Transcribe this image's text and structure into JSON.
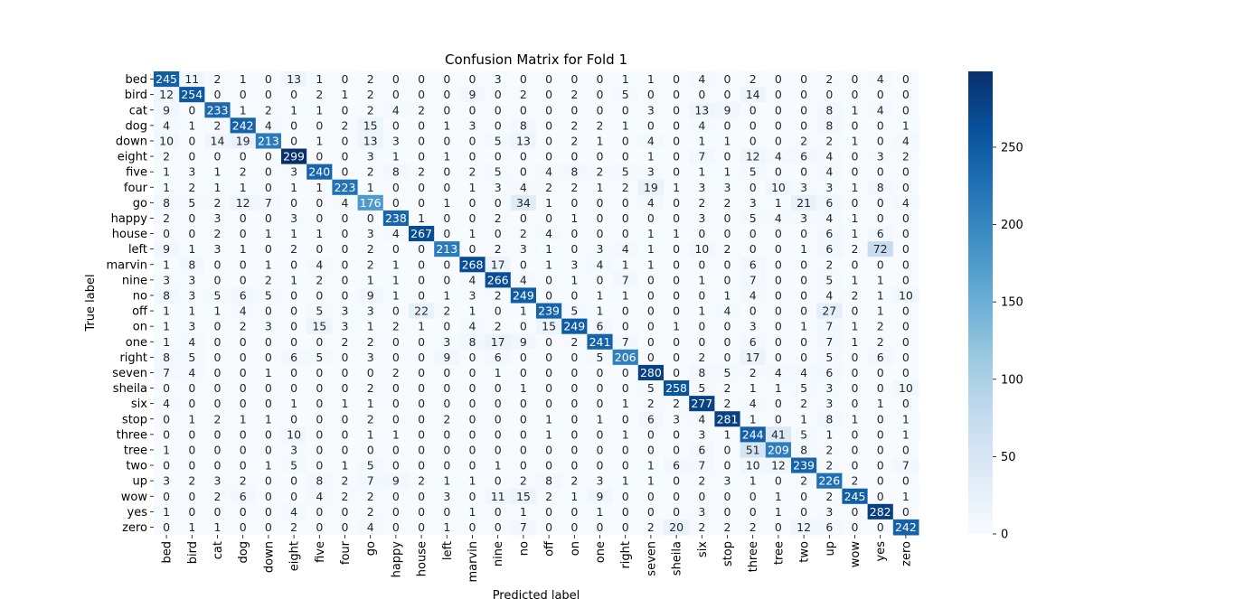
{
  "chart_data": {
    "type": "heatmap",
    "title": "Confusion Matrix for Fold 1",
    "xlabel": "Predicted label",
    "ylabel": "True label",
    "labels": [
      "bed",
      "bird",
      "cat",
      "dog",
      "down",
      "eight",
      "five",
      "four",
      "go",
      "happy",
      "house",
      "left",
      "marvin",
      "nine",
      "no",
      "off",
      "on",
      "one",
      "right",
      "seven",
      "sheila",
      "six",
      "stop",
      "three",
      "tree",
      "two",
      "up",
      "wow",
      "yes",
      "zero"
    ],
    "matrix": [
      [
        245,
        11,
        2,
        1,
        0,
        13,
        1,
        0,
        2,
        0,
        0,
        0,
        0,
        3,
        0,
        0,
        0,
        0,
        1,
        1,
        0,
        4,
        0,
        2,
        0,
        0,
        2,
        0,
        4,
        0
      ],
      [
        12,
        254,
        0,
        0,
        0,
        0,
        2,
        1,
        2,
        0,
        0,
        0,
        9,
        0,
        2,
        0,
        2,
        0,
        5,
        0,
        0,
        0,
        0,
        14,
        0,
        0,
        0,
        0,
        0,
        0
      ],
      [
        9,
        0,
        233,
        1,
        2,
        1,
        1,
        0,
        2,
        4,
        2,
        0,
        0,
        0,
        0,
        0,
        0,
        0,
        0,
        3,
        0,
        13,
        9,
        0,
        0,
        0,
        8,
        1,
        4,
        0
      ],
      [
        4,
        1,
        2,
        242,
        4,
        0,
        0,
        2,
        15,
        0,
        0,
        1,
        3,
        0,
        8,
        0,
        2,
        2,
        1,
        0,
        0,
        4,
        0,
        0,
        0,
        0,
        8,
        0,
        0,
        1
      ],
      [
        10,
        0,
        14,
        19,
        213,
        0,
        1,
        0,
        13,
        3,
        0,
        0,
        0,
        5,
        13,
        0,
        2,
        1,
        0,
        4,
        0,
        1,
        1,
        0,
        0,
        2,
        2,
        1,
        0,
        4
      ],
      [
        2,
        0,
        0,
        0,
        0,
        299,
        0,
        0,
        3,
        1,
        0,
        1,
        0,
        0,
        0,
        0,
        0,
        0,
        0,
        1,
        0,
        7,
        0,
        12,
        4,
        6,
        4,
        0,
        3,
        2
      ],
      [
        1,
        3,
        1,
        2,
        0,
        3,
        240,
        0,
        2,
        8,
        2,
        0,
        2,
        5,
        0,
        4,
        8,
        2,
        5,
        3,
        0,
        1,
        1,
        5,
        0,
        0,
        4,
        0,
        0,
        0
      ],
      [
        1,
        2,
        1,
        1,
        0,
        1,
        1,
        223,
        1,
        0,
        0,
        0,
        1,
        3,
        4,
        2,
        2,
        1,
        2,
        19,
        1,
        3,
        3,
        0,
        10,
        3,
        3,
        1,
        8,
        0
      ],
      [
        8,
        5,
        2,
        12,
        7,
        0,
        0,
        4,
        176,
        0,
        0,
        1,
        0,
        0,
        34,
        1,
        0,
        0,
        0,
        4,
        0,
        2,
        2,
        3,
        1,
        21,
        6,
        0,
        0,
        4
      ],
      [
        2,
        0,
        3,
        0,
        0,
        3,
        0,
        0,
        0,
        238,
        1,
        0,
        0,
        2,
        0,
        0,
        1,
        0,
        0,
        0,
        0,
        3,
        0,
        5,
        4,
        3,
        4,
        1,
        0,
        0
      ],
      [
        0,
        0,
        2,
        0,
        1,
        1,
        1,
        0,
        3,
        4,
        267,
        0,
        1,
        0,
        2,
        4,
        0,
        0,
        0,
        1,
        1,
        0,
        0,
        0,
        0,
        0,
        6,
        1,
        6,
        0
      ],
      [
        9,
        1,
        3,
        1,
        0,
        2,
        0,
        0,
        2,
        0,
        0,
        213,
        0,
        2,
        3,
        1,
        0,
        3,
        4,
        1,
        0,
        10,
        2,
        0,
        0,
        1,
        6,
        2,
        72,
        0
      ],
      [
        1,
        8,
        0,
        0,
        1,
        0,
        4,
        0,
        2,
        1,
        0,
        0,
        268,
        17,
        0,
        1,
        3,
        4,
        1,
        1,
        0,
        0,
        0,
        6,
        0,
        0,
        2,
        0,
        0,
        0
      ],
      [
        3,
        3,
        0,
        0,
        2,
        1,
        2,
        0,
        1,
        1,
        0,
        0,
        4,
        266,
        4,
        0,
        1,
        0,
        7,
        0,
        0,
        1,
        0,
        7,
        0,
        0,
        5,
        1,
        1,
        0
      ],
      [
        8,
        3,
        5,
        6,
        5,
        0,
        0,
        0,
        9,
        1,
        0,
        1,
        3,
        2,
        249,
        0,
        0,
        1,
        1,
        0,
        0,
        0,
        1,
        4,
        0,
        0,
        4,
        2,
        1,
        10
      ],
      [
        1,
        1,
        1,
        4,
        0,
        0,
        5,
        3,
        3,
        0,
        22,
        2,
        1,
        0,
        1,
        239,
        5,
        1,
        0,
        0,
        0,
        1,
        4,
        0,
        0,
        0,
        27,
        0,
        1,
        0
      ],
      [
        1,
        3,
        0,
        2,
        3,
        0,
        15,
        3,
        1,
        2,
        1,
        0,
        4,
        2,
        0,
        15,
        249,
        6,
        0,
        0,
        1,
        0,
        0,
        3,
        0,
        1,
        7,
        1,
        2,
        0
      ],
      [
        1,
        4,
        0,
        0,
        0,
        0,
        0,
        2,
        2,
        0,
        0,
        3,
        8,
        17,
        9,
        0,
        2,
        241,
        7,
        0,
        0,
        0,
        0,
        6,
        0,
        0,
        7,
        1,
        2,
        0
      ],
      [
        8,
        5,
        0,
        0,
        0,
        6,
        5,
        0,
        3,
        0,
        0,
        9,
        0,
        6,
        0,
        0,
        0,
        5,
        206,
        0,
        0,
        2,
        0,
        17,
        0,
        0,
        5,
        0,
        6,
        0
      ],
      [
        7,
        4,
        0,
        0,
        1,
        0,
        0,
        0,
        0,
        2,
        0,
        0,
        0,
        1,
        0,
        0,
        0,
        0,
        0,
        280,
        0,
        8,
        5,
        2,
        4,
        4,
        6,
        0,
        0,
        0
      ],
      [
        0,
        0,
        0,
        0,
        0,
        0,
        0,
        0,
        2,
        0,
        0,
        0,
        0,
        0,
        1,
        0,
        0,
        0,
        0,
        5,
        258,
        5,
        2,
        1,
        1,
        5,
        3,
        0,
        0,
        10
      ],
      [
        4,
        0,
        0,
        0,
        0,
        1,
        0,
        1,
        1,
        0,
        0,
        0,
        0,
        0,
        0,
        0,
        0,
        0,
        1,
        2,
        2,
        277,
        2,
        4,
        0,
        2,
        3,
        0,
        1,
        0
      ],
      [
        0,
        1,
        2,
        1,
        1,
        0,
        0,
        0,
        2,
        0,
        0,
        2,
        0,
        0,
        0,
        1,
        0,
        1,
        0,
        6,
        3,
        4,
        281,
        1,
        0,
        1,
        8,
        1,
        0,
        1
      ],
      [
        0,
        0,
        0,
        0,
        0,
        10,
        0,
        0,
        1,
        1,
        0,
        0,
        0,
        0,
        0,
        1,
        0,
        0,
        1,
        0,
        0,
        3,
        1,
        244,
        41,
        5,
        1,
        0,
        0,
        1
      ],
      [
        1,
        0,
        0,
        0,
        0,
        3,
        0,
        0,
        0,
        0,
        0,
        0,
        0,
        0,
        0,
        0,
        0,
        0,
        0,
        0,
        0,
        6,
        0,
        51,
        209,
        8,
        2,
        0,
        0,
        0
      ],
      [
        0,
        0,
        0,
        0,
        1,
        5,
        0,
        1,
        5,
        0,
        0,
        0,
        0,
        1,
        0,
        0,
        0,
        0,
        0,
        1,
        6,
        7,
        0,
        10,
        12,
        239,
        2,
        0,
        0,
        7
      ],
      [
        3,
        2,
        3,
        2,
        0,
        0,
        8,
        2,
        7,
        9,
        2,
        1,
        1,
        0,
        2,
        8,
        2,
        3,
        1,
        1,
        0,
        2,
        3,
        1,
        0,
        2,
        226,
        2,
        0,
        0
      ],
      [
        0,
        0,
        2,
        6,
        0,
        0,
        4,
        2,
        2,
        0,
        0,
        3,
        0,
        11,
        15,
        2,
        1,
        9,
        0,
        0,
        0,
        0,
        0,
        0,
        1,
        0,
        2,
        245,
        0,
        1
      ],
      [
        1,
        0,
        0,
        0,
        0,
        4,
        0,
        0,
        2,
        0,
        0,
        0,
        1,
        0,
        1,
        0,
        0,
        1,
        0,
        0,
        0,
        3,
        0,
        0,
        1,
        0,
        3,
        0,
        282,
        0
      ],
      [
        0,
        1,
        1,
        0,
        0,
        2,
        0,
        0,
        4,
        0,
        0,
        1,
        0,
        0,
        7,
        0,
        0,
        0,
        0,
        2,
        20,
        2,
        2,
        2,
        0,
        12,
        6,
        0,
        0,
        242
      ]
    ],
    "colorbar": {
      "min": 0,
      "max": 299,
      "ticks": [
        0,
        50,
        100,
        150,
        200,
        250
      ]
    },
    "colormap": "Blues",
    "grid": false,
    "legend": "colorbar-right"
  }
}
